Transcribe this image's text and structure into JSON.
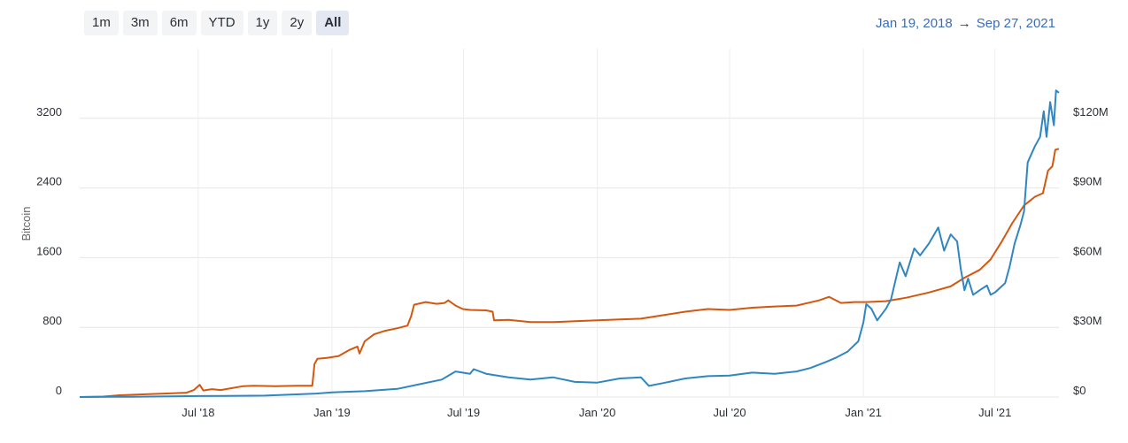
{
  "range_selector": {
    "buttons": [
      {
        "label": "1m",
        "active": false
      },
      {
        "label": "3m",
        "active": false
      },
      {
        "label": "6m",
        "active": false
      },
      {
        "label": "YTD",
        "active": false
      },
      {
        "label": "1y",
        "active": false
      },
      {
        "label": "2y",
        "active": false
      },
      {
        "label": "All",
        "active": true
      }
    ]
  },
  "date_range": {
    "from": "Jan 19, 2018",
    "arrow": "→",
    "to": "Sep 27, 2021"
  },
  "chart_data": {
    "type": "line",
    "title": "",
    "x_range": [
      "2018-01-19",
      "2021-09-27"
    ],
    "x_ticks": [
      {
        "date": "2018-07-01",
        "label": "Jul '18"
      },
      {
        "date": "2019-01-01",
        "label": "Jan '19"
      },
      {
        "date": "2019-07-01",
        "label": "Jul '19"
      },
      {
        "date": "2020-01-01",
        "label": "Jan '20"
      },
      {
        "date": "2020-07-01",
        "label": "Jul '20"
      },
      {
        "date": "2021-01-01",
        "label": "Jan '21"
      },
      {
        "date": "2021-07-01",
        "label": "Jul '21"
      }
    ],
    "y_left": {
      "label": "Bitcoin",
      "range": [
        0,
        4000
      ],
      "ticks": [
        0,
        800,
        1600,
        2400,
        3200
      ]
    },
    "y_right": {
      "label": "",
      "range": [
        0,
        150000000
      ],
      "ticks": [
        {
          "value": 0,
          "label": "$0"
        },
        {
          "value": 30000000,
          "label": "$30M"
        },
        {
          "value": 60000000,
          "label": "$60M"
        },
        {
          "value": 90000000,
          "label": "$90M"
        },
        {
          "value": 120000000,
          "label": "$120M"
        }
      ]
    },
    "grid": true,
    "series": [
      {
        "axis": "left",
        "color": "#d4570f",
        "points": [
          [
            "2018-01-19",
            0
          ],
          [
            "2018-02-20",
            5
          ],
          [
            "2018-03-15",
            20
          ],
          [
            "2018-04-15",
            30
          ],
          [
            "2018-05-15",
            40
          ],
          [
            "2018-06-15",
            50
          ],
          [
            "2018-06-25",
            80
          ],
          [
            "2018-07-03",
            140
          ],
          [
            "2018-07-08",
            75
          ],
          [
            "2018-07-20",
            90
          ],
          [
            "2018-08-01",
            80
          ],
          [
            "2018-08-15",
            100
          ],
          [
            "2018-09-01",
            125
          ],
          [
            "2018-09-15",
            130
          ],
          [
            "2018-10-15",
            125
          ],
          [
            "2018-11-15",
            130
          ],
          [
            "2018-12-05",
            130
          ],
          [
            "2018-12-08",
            380
          ],
          [
            "2018-12-12",
            440
          ],
          [
            "2018-12-25",
            450
          ],
          [
            "2019-01-10",
            470
          ],
          [
            "2019-01-25",
            540
          ],
          [
            "2019-02-05",
            580
          ],
          [
            "2019-02-08",
            500
          ],
          [
            "2019-02-15",
            640
          ],
          [
            "2019-02-28",
            720
          ],
          [
            "2019-03-15",
            760
          ],
          [
            "2019-04-01",
            790
          ],
          [
            "2019-04-15",
            820
          ],
          [
            "2019-04-20",
            930
          ],
          [
            "2019-04-24",
            1060
          ],
          [
            "2019-05-10",
            1090
          ],
          [
            "2019-05-25",
            1070
          ],
          [
            "2019-06-05",
            1080
          ],
          [
            "2019-06-10",
            1110
          ],
          [
            "2019-06-20",
            1050
          ],
          [
            "2019-06-30",
            1010
          ],
          [
            "2019-07-10",
            1000
          ],
          [
            "2019-08-01",
            995
          ],
          [
            "2019-08-10",
            980
          ],
          [
            "2019-08-12",
            880
          ],
          [
            "2019-09-01",
            885
          ],
          [
            "2019-10-01",
            860
          ],
          [
            "2019-11-01",
            860
          ],
          [
            "2019-12-01",
            870
          ],
          [
            "2020-01-01",
            880
          ],
          [
            "2020-02-01",
            890
          ],
          [
            "2020-03-01",
            900
          ],
          [
            "2020-04-01",
            940
          ],
          [
            "2020-05-01",
            980
          ],
          [
            "2020-06-01",
            1010
          ],
          [
            "2020-07-01",
            1000
          ],
          [
            "2020-08-01",
            1025
          ],
          [
            "2020-09-01",
            1040
          ],
          [
            "2020-10-01",
            1050
          ],
          [
            "2020-11-01",
            1110
          ],
          [
            "2020-11-15",
            1150
          ],
          [
            "2020-12-01",
            1080
          ],
          [
            "2020-12-20",
            1090
          ],
          [
            "2021-01-05",
            1090
          ],
          [
            "2021-02-01",
            1100
          ],
          [
            "2021-03-01",
            1140
          ],
          [
            "2021-04-01",
            1200
          ],
          [
            "2021-05-01",
            1270
          ],
          [
            "2021-05-20",
            1370
          ],
          [
            "2021-06-10",
            1460
          ],
          [
            "2021-06-25",
            1580
          ],
          [
            "2021-07-10",
            1780
          ],
          [
            "2021-07-25",
            2000
          ],
          [
            "2021-08-10",
            2200
          ],
          [
            "2021-08-25",
            2300
          ],
          [
            "2021-09-05",
            2340
          ],
          [
            "2021-09-12",
            2600
          ],
          [
            "2021-09-18",
            2650
          ],
          [
            "2021-09-22",
            2840
          ],
          [
            "2021-09-27",
            2850
          ]
        ]
      },
      {
        "axis": "right",
        "color": "#2f86c1",
        "points": [
          [
            "2018-01-19",
            0
          ],
          [
            "2018-04-01",
            100000
          ],
          [
            "2018-07-01",
            400000
          ],
          [
            "2018-10-01",
            600000
          ],
          [
            "2018-12-10",
            1500000
          ],
          [
            "2019-01-01",
            2000000
          ],
          [
            "2019-02-15",
            2500000
          ],
          [
            "2019-04-01",
            3500000
          ],
          [
            "2019-05-01",
            5500000
          ],
          [
            "2019-06-01",
            7500000
          ],
          [
            "2019-06-20",
            11000000
          ],
          [
            "2019-07-10",
            10000000
          ],
          [
            "2019-07-15",
            12000000
          ],
          [
            "2019-08-01",
            10000000
          ],
          [
            "2019-09-01",
            8500000
          ],
          [
            "2019-10-01",
            7500000
          ],
          [
            "2019-11-01",
            8500000
          ],
          [
            "2019-12-01",
            6500000
          ],
          [
            "2020-01-01",
            6200000
          ],
          [
            "2020-02-01",
            8000000
          ],
          [
            "2020-03-01",
            8500000
          ],
          [
            "2020-03-12",
            4800000
          ],
          [
            "2020-04-01",
            6000000
          ],
          [
            "2020-05-01",
            8000000
          ],
          [
            "2020-06-01",
            9000000
          ],
          [
            "2020-07-01",
            9200000
          ],
          [
            "2020-08-01",
            10500000
          ],
          [
            "2020-09-01",
            10000000
          ],
          [
            "2020-10-01",
            11000000
          ],
          [
            "2020-10-20",
            12500000
          ],
          [
            "2020-11-10",
            15000000
          ],
          [
            "2020-11-25",
            17000000
          ],
          [
            "2020-12-10",
            19500000
          ],
          [
            "2020-12-25",
            24000000
          ],
          [
            "2021-01-01",
            32000000
          ],
          [
            "2021-01-05",
            40000000
          ],
          [
            "2021-01-12",
            38000000
          ],
          [
            "2021-01-20",
            33000000
          ],
          [
            "2021-02-01",
            38000000
          ],
          [
            "2021-02-08",
            42000000
          ],
          [
            "2021-02-20",
            58000000
          ],
          [
            "2021-02-28",
            52000000
          ],
          [
            "2021-03-12",
            64000000
          ],
          [
            "2021-03-20",
            61000000
          ],
          [
            "2021-04-01",
            66000000
          ],
          [
            "2021-04-14",
            73000000
          ],
          [
            "2021-04-22",
            63000000
          ],
          [
            "2021-05-01",
            70000000
          ],
          [
            "2021-05-10",
            67000000
          ],
          [
            "2021-05-15",
            55000000
          ],
          [
            "2021-05-20",
            46000000
          ],
          [
            "2021-05-25",
            51000000
          ],
          [
            "2021-06-01",
            44000000
          ],
          [
            "2021-06-10",
            46000000
          ],
          [
            "2021-06-20",
            48000000
          ],
          [
            "2021-06-25",
            44000000
          ],
          [
            "2021-07-01",
            45000000
          ],
          [
            "2021-07-15",
            49000000
          ],
          [
            "2021-07-21",
            56000000
          ],
          [
            "2021-07-28",
            66000000
          ],
          [
            "2021-08-05",
            74000000
          ],
          [
            "2021-08-10",
            80000000
          ],
          [
            "2021-08-15",
            101000000
          ],
          [
            "2021-08-25",
            108000000
          ],
          [
            "2021-09-01",
            112000000
          ],
          [
            "2021-09-06",
            123000000
          ],
          [
            "2021-09-10",
            112000000
          ],
          [
            "2021-09-15",
            127000000
          ],
          [
            "2021-09-20",
            117000000
          ],
          [
            "2021-09-23",
            132000000
          ],
          [
            "2021-09-27",
            131000000
          ]
        ]
      }
    ]
  }
}
